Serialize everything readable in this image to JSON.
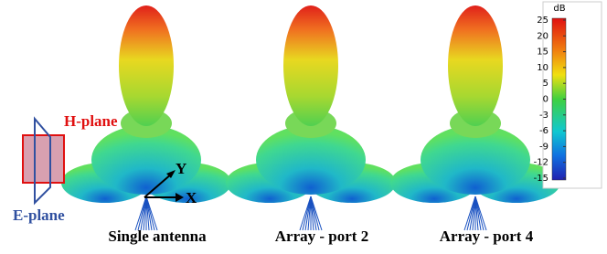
{
  "legend": {
    "h_plane": "H-plane",
    "e_plane": "E-plane"
  },
  "axes": {
    "x": "X",
    "y": "Y"
  },
  "captions": [
    "Single antenna",
    "Array - port 2",
    "Array - port 4"
  ],
  "colorbar": {
    "unit": "dB",
    "ticks": [
      25,
      20,
      15,
      10,
      5,
      0,
      -3,
      -6,
      -9,
      -12,
      -15
    ]
  }
}
